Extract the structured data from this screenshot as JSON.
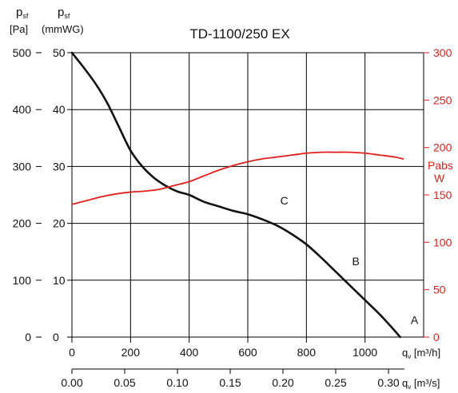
{
  "chart_data": {
    "type": "line",
    "title": "TD-1100/250 EX",
    "colors": {
      "pressure": "#111111",
      "power": "#e0201b",
      "grid": "#000000"
    },
    "grid": true,
    "axes": {
      "x_bottom": {
        "label_main": "q",
        "label_sub": "v",
        "label_unit": " [m³/h]",
        "range": [
          0,
          1200
        ],
        "ticks": [
          0,
          200,
          400,
          600,
          800,
          1000
        ],
        "tick_labels": [
          "0",
          "200",
          "400",
          "600",
          "800",
          "1000"
        ]
      },
      "x_secondary": {
        "label_main": "q",
        "label_sub": "v",
        "label_unit": " [m³/s]",
        "range": [
          0,
          0.3333
        ],
        "ticks": [
          0,
          0.05,
          0.1,
          0.15,
          0.2,
          0.25,
          0.3
        ],
        "tick_labels": [
          "0.00",
          "0.05",
          "0.10",
          "0.15",
          "0.20",
          "0.25",
          "0.30"
        ]
      },
      "y_left_pa": {
        "label_main": "p",
        "label_sub": "sf",
        "label_unit": "[Pa]",
        "range": [
          0,
          500
        ],
        "ticks": [
          0,
          100,
          200,
          300,
          400,
          500
        ],
        "tick_labels": [
          "0",
          "100",
          "200",
          "300",
          "400",
          "500"
        ]
      },
      "y_left_mmwg": {
        "label_main": "p",
        "label_sub": "sf",
        "label_unit": "(mmWG)",
        "range": [
          0,
          50
        ],
        "ticks": [
          0,
          10,
          20,
          30,
          40,
          50
        ],
        "tick_labels": [
          "0",
          "10",
          "20",
          "30",
          "40",
          "50"
        ]
      },
      "y_right_w": {
        "label_main": "Pabs",
        "label_unit": "W",
        "range": [
          0,
          300
        ],
        "ticks": [
          0,
          50,
          100,
          150,
          200,
          250,
          300
        ],
        "tick_labels": [
          "0",
          "50",
          "100",
          "150",
          "200",
          "250",
          "300"
        ]
      }
    },
    "series": [
      {
        "id": "pressure",
        "axis": "y_left_pa",
        "x": [
          0,
          40,
          80,
          120,
          160,
          200,
          240,
          280,
          320,
          360,
          400,
          450,
          500,
          550,
          600,
          650,
          700,
          750,
          800,
          850,
          900,
          950,
          1000,
          1050,
          1100,
          1120
        ],
        "y": [
          500,
          474,
          446,
          412,
          370,
          328,
          300,
          280,
          266,
          256,
          250,
          238,
          230,
          222,
          216,
          207,
          196,
          181,
          163,
          140,
          115,
          90,
          65,
          40,
          12,
          0
        ]
      },
      {
        "id": "power",
        "axis": "y_right_w",
        "x": [
          0,
          50,
          100,
          150,
          200,
          250,
          300,
          350,
          400,
          450,
          500,
          550,
          600,
          650,
          700,
          750,
          800,
          850,
          900,
          950,
          1000,
          1050,
          1100,
          1130
        ],
        "y": [
          140,
          144,
          148,
          151,
          153,
          154,
          156,
          160,
          164,
          170,
          176,
          181,
          185,
          188,
          190,
          192,
          194,
          195,
          195,
          195,
          194,
          192,
          190,
          188
        ]
      }
    ],
    "annotations": [
      {
        "text": "C",
        "x": 700,
        "y": 222
      },
      {
        "text": "B",
        "x": 945,
        "y": 115
      },
      {
        "text": "A",
        "x": 1145,
        "y": 12
      }
    ]
  }
}
